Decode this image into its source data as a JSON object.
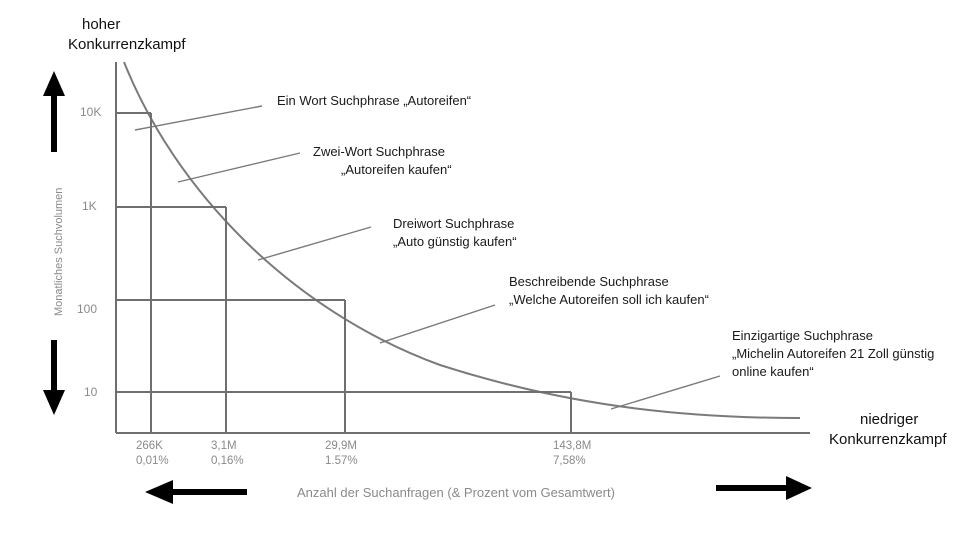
{
  "top_label": {
    "line1": "hoher",
    "line2": "Konkurrenzkampf"
  },
  "bottom_right_label": {
    "line1": "niedriger",
    "line2": "Konkurrenzkampf"
  },
  "y_axis_title": "Monatliches Suchvolumen",
  "x_axis_title": "Anzahl der Suchanfragen (& Prozent vom Gesamtwert)",
  "y_ticks": [
    "10K",
    "1K",
    "100",
    "10"
  ],
  "x_ticks": [
    {
      "value": "266K",
      "percent": "0,01%"
    },
    {
      "value": "3,1M",
      "percent": "0,16%"
    },
    {
      "value": "29,9M",
      "percent": "1.57%"
    },
    {
      "value": "143,8M",
      "percent": "7,58%"
    }
  ],
  "annotations": [
    {
      "line1": "Ein Wort Suchphrase „Autoreifen“",
      "line2": "",
      "line3": ""
    },
    {
      "line1": "Zwei-Wort Suchphrase",
      "line2": "„Autoreifen kaufen“",
      "line3": ""
    },
    {
      "line1": "Dreiwort Suchphrase",
      "line2": "„Auto günstig kaufen“",
      "line3": ""
    },
    {
      "line1": "Beschreibende Suchphrase",
      "line2": "„Welche Autoreifen soll ich kaufen“",
      "line3": ""
    },
    {
      "line1": "Einzigartige Suchphrase",
      "line2": "„Michelin Autoreifen 21 Zoll günstig",
      "line3": "online kaufen“"
    }
  ],
  "colors": {
    "curve": "#7a7a7a",
    "grid": "#6f6f6f",
    "arrow": "#000000",
    "muted_text": "#8a8a8a"
  }
}
